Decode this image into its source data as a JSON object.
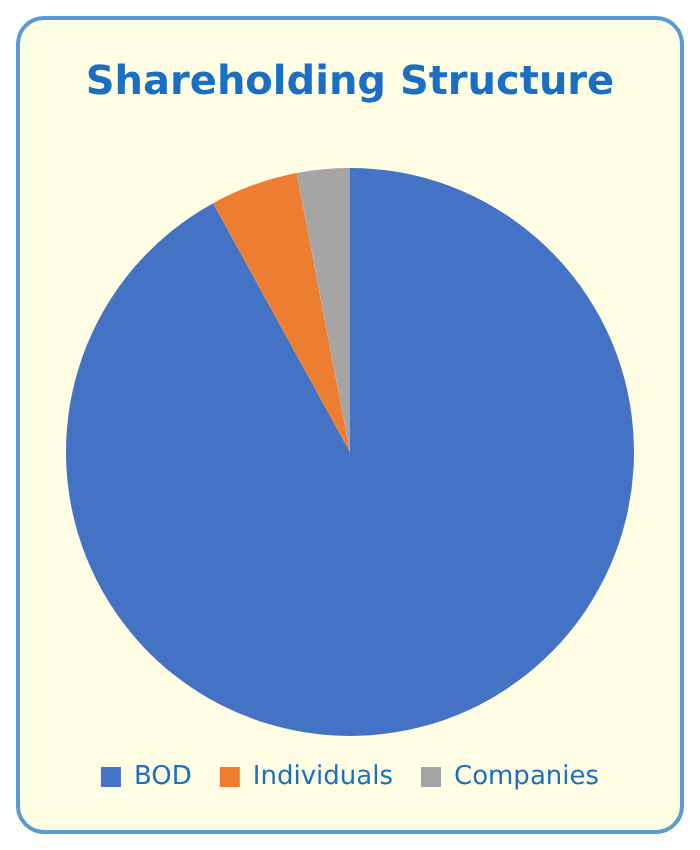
{
  "chart_data": {
    "type": "pie",
    "title": "Shareholding Structure",
    "categories": [
      "BOD",
      "Individuals",
      "Companies"
    ],
    "values": [
      92,
      5,
      3
    ],
    "colors": [
      "#4472c4",
      "#ed7d31",
      "#a5a5a5"
    ],
    "legend": "bottom"
  }
}
